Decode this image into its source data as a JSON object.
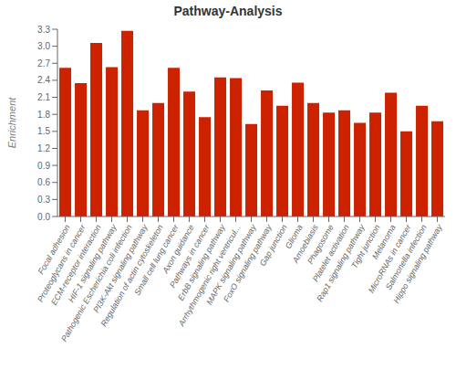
{
  "chart_data": {
    "type": "bar",
    "title": "Pathway-Analysis",
    "ylabel": "Enrichment",
    "categories": [
      "Focal adhesion",
      "Proteoglycans in cancer",
      "ECM-receptor interaction",
      "HIF-1 signaling pathway",
      "Pathogenic Escherichia coli infection",
      "PI3K-Akt signaling pathway",
      "Regulation of actin cytoskeleton",
      "Small cell lung cancer",
      "Axon guidance",
      "Pathways in cancer",
      "ErbB signaling pathway",
      "Arrhythmogenic right ventricul...",
      "MAPK signaling pathway",
      "FoxO signaling pathway",
      "Gap junction",
      "Glioma",
      "Amoebiasis",
      "Phagosome",
      "Platelet activation",
      "Rap1 signaling pathway",
      "Tight junction",
      "Melanoma",
      "MicroRNAs in cancer",
      "Salmonella infection",
      "Hippo signaling pathway"
    ],
    "values": [
      2.62,
      2.35,
      3.06,
      2.63,
      3.27,
      1.87,
      2.0,
      2.62,
      2.2,
      1.75,
      2.45,
      2.44,
      1.63,
      2.22,
      1.95,
      2.36,
      2.0,
      1.83,
      1.87,
      1.65,
      1.83,
      2.18,
      1.5,
      1.95,
      1.68
    ],
    "color": "#CC2200",
    "ylim": [
      0,
      3.3
    ],
    "yticks": [
      {
        "value": 0,
        "label": "0.0"
      },
      0.3,
      0.6,
      0.9,
      1.2,
      1.5,
      1.8,
      2.1,
      2.4,
      2.7,
      {
        "value": 3.0,
        "label": "3.0"
      },
      3.3
    ]
  }
}
